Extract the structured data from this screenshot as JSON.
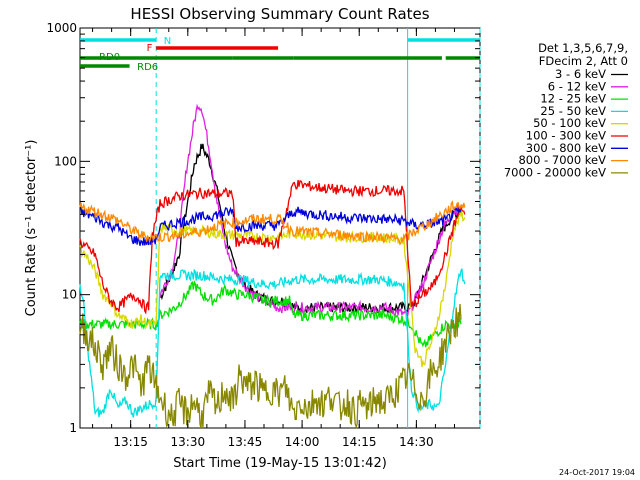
{
  "chart_data": {
    "type": "line",
    "title": "HESSI Observing Summary Count Rates",
    "xlabel": "Start Time (19-May-15 13:01:42)",
    "ylabel": "Count Rate (s⁻¹ detector⁻¹)",
    "yscale": "log",
    "ylim": [
      1,
      1000
    ],
    "xlim_minutes": [
      0,
      105
    ],
    "x_ticks": [
      "13:15",
      "13:30",
      "13:45",
      "14:00",
      "14:15",
      "14:30"
    ],
    "y_ticks": [
      "1",
      "10",
      "100",
      "1000"
    ],
    "legend": {
      "placement": "right",
      "header": [
        "Det 1,3,5,6,7,9,",
        "FDecim 2, Att 0"
      ],
      "entries": [
        {
          "label": "3 - 6 keV",
          "color": "#000000"
        },
        {
          "label": "6 - 12 keV",
          "color": "#e020e0"
        },
        {
          "label": "12 - 25 keV",
          "color": "#00e000"
        },
        {
          "label": "25 - 50 keV",
          "color": "#00e0e0"
        },
        {
          "label": "50 - 100 keV",
          "color": "#d8d800"
        },
        {
          "label": "100 - 300 keV",
          "color": "#ee0000"
        },
        {
          "label": "300 - 800 keV",
          "color": "#0000dd"
        },
        {
          "label": "800 - 7000 keV",
          "color": "#ff8800"
        },
        {
          "label": "7000 - 20000 keV",
          "color": "#888800"
        }
      ]
    },
    "flag_bars": [
      {
        "label": "N",
        "color": "#00e0e0",
        "row": 1,
        "intervals": [
          [
            0,
            20
          ],
          [
            86,
            105
          ]
        ]
      },
      {
        "label": "F",
        "color": "#ee0000",
        "row": 2,
        "intervals": [
          [
            20,
            52
          ]
        ]
      },
      {
        "label": "RD0",
        "color": "#008800",
        "row": 3,
        "intervals": [
          [
            0,
            40
          ],
          [
            40,
            56
          ],
          [
            56,
            95
          ],
          [
            96,
            105
          ]
        ]
      },
      {
        "label": "RD6",
        "color": "#008800",
        "row": 4,
        "intervals": [
          [
            0,
            13
          ]
        ]
      }
    ],
    "vertical_lines": [
      {
        "x": 20,
        "style": "dashed",
        "color": "#00e0e0"
      },
      {
        "x": 86,
        "style": "solid",
        "color": "#00e0e0"
      },
      {
        "x": 105,
        "style": "dashed",
        "color": "#00e0e0"
      }
    ],
    "series": [
      {
        "name": "3 - 6 keV",
        "color": "#000000",
        "points": [
          [
            21,
            9.5
          ],
          [
            24,
            14
          ],
          [
            26,
            20
          ],
          [
            28,
            45
          ],
          [
            30,
            95
          ],
          [
            32,
            130
          ],
          [
            34,
            100
          ],
          [
            36,
            60
          ],
          [
            38,
            30
          ],
          [
            40,
            18
          ],
          [
            43,
            12
          ],
          [
            46,
            10
          ],
          [
            50,
            9
          ],
          [
            55,
            9
          ],
          [
            56,
            8
          ],
          [
            60,
            8
          ],
          [
            70,
            8
          ],
          [
            80,
            8
          ],
          [
            86,
            8
          ],
          [
            88,
            9
          ],
          [
            92,
            18
          ],
          [
            95,
            30
          ],
          [
            98,
            40
          ],
          [
            100,
            42
          ]
        ]
      },
      {
        "name": "6 - 12 keV",
        "color": "#e020e0",
        "points": [
          [
            21,
            10
          ],
          [
            24,
            15
          ],
          [
            26,
            28
          ],
          [
            28,
            90
          ],
          [
            30,
            200
          ],
          [
            31,
            270
          ],
          [
            32,
            250
          ],
          [
            34,
            120
          ],
          [
            36,
            50
          ],
          [
            38,
            25
          ],
          [
            40,
            16
          ],
          [
            44,
            11
          ],
          [
            48,
            9
          ],
          [
            52,
            8
          ],
          [
            56,
            8
          ],
          [
            70,
            8
          ],
          [
            80,
            8
          ],
          [
            86,
            7
          ],
          [
            90,
            12
          ],
          [
            95,
            30
          ],
          [
            98,
            42
          ],
          [
            100,
            45
          ]
        ]
      },
      {
        "name": "12 - 25 keV",
        "color": "#00e000",
        "points": [
          [
            0,
            6
          ],
          [
            2,
            6
          ],
          [
            4,
            6
          ],
          [
            6,
            6
          ],
          [
            9,
            6
          ],
          [
            12,
            6
          ],
          [
            14,
            6
          ],
          [
            16,
            6
          ],
          [
            18,
            6
          ],
          [
            20,
            6
          ],
          [
            21,
            7
          ],
          [
            25,
            8
          ],
          [
            28,
            10
          ],
          [
            30,
            12
          ],
          [
            32,
            10
          ],
          [
            35,
            9
          ],
          [
            38,
            11
          ],
          [
            41,
            10
          ],
          [
            44,
            10
          ],
          [
            48,
            9
          ],
          [
            52,
            9
          ],
          [
            55,
            9
          ],
          [
            56,
            7
          ],
          [
            60,
            7
          ],
          [
            65,
            7
          ],
          [
            70,
            7
          ],
          [
            75,
            7
          ],
          [
            80,
            7
          ],
          [
            85,
            6.5
          ],
          [
            87,
            6
          ],
          [
            90,
            4
          ],
          [
            93,
            5
          ],
          [
            96,
            6
          ],
          [
            100,
            6
          ]
        ]
      },
      {
        "name": "25 - 50 keV",
        "color": "#00e0e0",
        "points": [
          [
            0,
            12
          ],
          [
            1,
            8
          ],
          [
            2,
            4
          ],
          [
            4,
            1.3
          ],
          [
            6,
            1.3
          ],
          [
            8,
            2
          ],
          [
            10,
            1.4
          ],
          [
            12,
            1.6
          ],
          [
            14,
            1.3
          ],
          [
            16,
            1.4
          ],
          [
            18,
            1.5
          ],
          [
            20,
            1.6
          ],
          [
            21,
            14
          ],
          [
            26,
            14
          ],
          [
            32,
            14
          ],
          [
            38,
            13
          ],
          [
            42,
            13
          ],
          [
            48,
            12
          ],
          [
            52,
            12
          ],
          [
            56,
            13
          ],
          [
            62,
            13
          ],
          [
            70,
            13
          ],
          [
            78,
            13
          ],
          [
            85,
            12
          ],
          [
            87,
            2
          ],
          [
            89,
            1.4
          ],
          [
            92,
            1.5
          ],
          [
            94,
            1.4
          ],
          [
            96,
            3
          ],
          [
            98,
            8
          ],
          [
            100,
            16
          ],
          [
            101,
            12
          ]
        ]
      },
      {
        "name": "50 - 100 keV",
        "color": "#d8d800",
        "points": [
          [
            0,
            22
          ],
          [
            2,
            19
          ],
          [
            4,
            15
          ],
          [
            6,
            10
          ],
          [
            8,
            9
          ],
          [
            10,
            7
          ],
          [
            12,
            6.5
          ],
          [
            14,
            6
          ],
          [
            16,
            6.5
          ],
          [
            18,
            6
          ],
          [
            20,
            6
          ],
          [
            21,
            32
          ],
          [
            26,
            30
          ],
          [
            32,
            30
          ],
          [
            38,
            28
          ],
          [
            42,
            28
          ],
          [
            48,
            27
          ],
          [
            52,
            27
          ],
          [
            56,
            29
          ],
          [
            62,
            28
          ],
          [
            70,
            27
          ],
          [
            78,
            27
          ],
          [
            85,
            26
          ],
          [
            88,
            4
          ],
          [
            90,
            3
          ],
          [
            93,
            5
          ],
          [
            96,
            12
          ],
          [
            98,
            30
          ],
          [
            100,
            40
          ],
          [
            101,
            38
          ]
        ]
      },
      {
        "name": "100 - 300 keV",
        "color": "#ee0000",
        "points": [
          [
            0,
            25
          ],
          [
            2,
            22
          ],
          [
            4,
            20
          ],
          [
            5,
            15
          ],
          [
            6,
            12
          ],
          [
            8,
            9
          ],
          [
            10,
            8
          ],
          [
            12,
            9
          ],
          [
            14,
            10
          ],
          [
            16,
            9
          ],
          [
            17,
            8
          ],
          [
            18,
            8
          ],
          [
            19,
            28
          ],
          [
            21,
            48
          ],
          [
            26,
            55
          ],
          [
            32,
            58
          ],
          [
            36,
            57
          ],
          [
            40,
            58
          ],
          [
            41,
            25
          ],
          [
            46,
            25
          ],
          [
            52,
            24
          ],
          [
            56,
            68
          ],
          [
            62,
            64
          ],
          [
            70,
            60
          ],
          [
            78,
            60
          ],
          [
            85,
            60
          ],
          [
            87,
            8
          ],
          [
            90,
            10
          ],
          [
            93,
            12
          ],
          [
            96,
            20
          ],
          [
            98,
            32
          ],
          [
            100,
            45
          ],
          [
            101,
            40
          ]
        ]
      },
      {
        "name": "300 - 800 keV",
        "color": "#0000dd",
        "points": [
          [
            0,
            42
          ],
          [
            2,
            40
          ],
          [
            4,
            38
          ],
          [
            6,
            35
          ],
          [
            8,
            33
          ],
          [
            10,
            32
          ],
          [
            12,
            28
          ],
          [
            14,
            26
          ],
          [
            16,
            25
          ],
          [
            18,
            25
          ],
          [
            20,
            26
          ],
          [
            21,
            32
          ],
          [
            26,
            35
          ],
          [
            32,
            38
          ],
          [
            36,
            40
          ],
          [
            40,
            42
          ],
          [
            41,
            32
          ],
          [
            46,
            33
          ],
          [
            52,
            33
          ],
          [
            56,
            42
          ],
          [
            62,
            40
          ],
          [
            70,
            38
          ],
          [
            78,
            37
          ],
          [
            85,
            36
          ],
          [
            88,
            33
          ],
          [
            92,
            34
          ],
          [
            96,
            36
          ],
          [
            98,
            40
          ],
          [
            100,
            42
          ]
        ]
      },
      {
        "name": "800 - 7000 keV",
        "color": "#ff8800",
        "points": [
          [
            0,
            45
          ],
          [
            2,
            44
          ],
          [
            4,
            42
          ],
          [
            6,
            40
          ],
          [
            8,
            38
          ],
          [
            10,
            36
          ],
          [
            12,
            33
          ],
          [
            14,
            30
          ],
          [
            16,
            28
          ],
          [
            18,
            27
          ],
          [
            20,
            27
          ],
          [
            21,
            27
          ],
          [
            26,
            28
          ],
          [
            32,
            30
          ],
          [
            36,
            33
          ],
          [
            40,
            35
          ],
          [
            41,
            35
          ],
          [
            46,
            37
          ],
          [
            52,
            37
          ],
          [
            56,
            30
          ],
          [
            62,
            29
          ],
          [
            70,
            28
          ],
          [
            78,
            27
          ],
          [
            85,
            26
          ],
          [
            88,
            30
          ],
          [
            92,
            35
          ],
          [
            96,
            42
          ],
          [
            98,
            46
          ],
          [
            100,
            48
          ],
          [
            101,
            45
          ]
        ]
      },
      {
        "name": "7000 - 20000 keV",
        "color": "#888800",
        "points": [
          [
            0,
            6
          ],
          [
            2,
            5
          ],
          [
            4,
            4
          ],
          [
            6,
            3
          ],
          [
            8,
            4
          ],
          [
            10,
            3
          ],
          [
            12,
            2.5
          ],
          [
            14,
            3
          ],
          [
            16,
            2
          ],
          [
            18,
            3
          ],
          [
            20,
            2
          ],
          [
            22,
            1.5
          ],
          [
            24,
            1.2
          ],
          [
            26,
            1.5
          ],
          [
            28,
            1.3
          ],
          [
            30,
            1.6
          ],
          [
            32,
            1.2
          ],
          [
            34,
            1.8
          ],
          [
            36,
            1.4
          ],
          [
            38,
            2
          ],
          [
            40,
            1.5
          ],
          [
            42,
            2.5
          ],
          [
            44,
            2
          ],
          [
            46,
            2.2
          ],
          [
            48,
            1.8
          ],
          [
            50,
            2
          ],
          [
            52,
            1.8
          ],
          [
            54,
            2
          ],
          [
            56,
            1.3
          ],
          [
            58,
            1.6
          ],
          [
            60,
            1.4
          ],
          [
            62,
            1.7
          ],
          [
            64,
            1.5
          ],
          [
            66,
            1.8
          ],
          [
            68,
            1.4
          ],
          [
            70,
            1.6
          ],
          [
            72,
            1.3
          ],
          [
            74,
            1.5
          ],
          [
            76,
            1.4
          ],
          [
            78,
            1.7
          ],
          [
            80,
            1.5
          ],
          [
            82,
            1.8
          ],
          [
            84,
            2
          ],
          [
            86,
            2.5
          ],
          [
            88,
            2
          ],
          [
            90,
            1.6
          ],
          [
            92,
            2.5
          ],
          [
            94,
            3
          ],
          [
            96,
            4.5
          ],
          [
            98,
            6
          ],
          [
            100,
            6.5
          ]
        ]
      }
    ]
  },
  "footer": {
    "date_stamp": "24-Oct-2017 19:04"
  }
}
